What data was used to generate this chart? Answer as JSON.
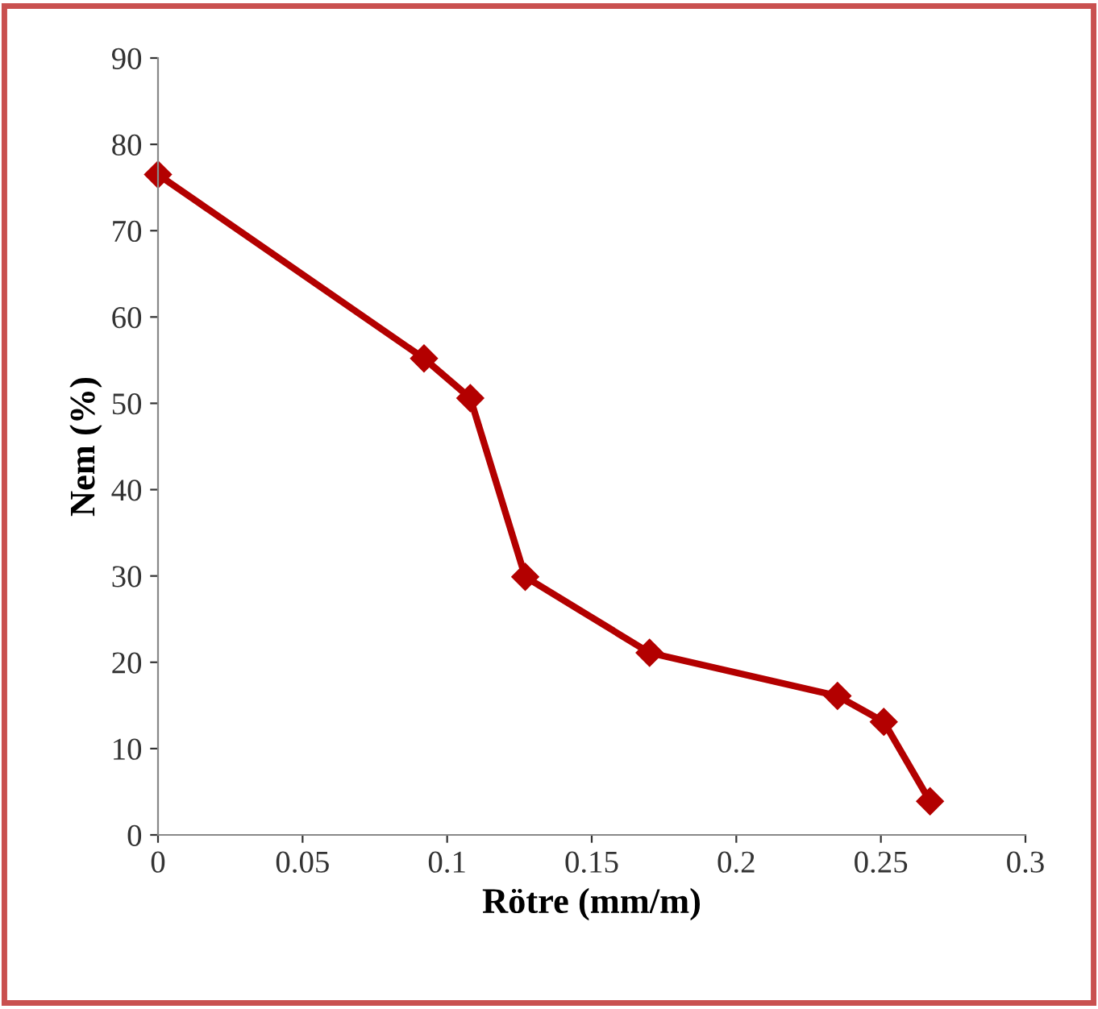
{
  "chart_data": {
    "type": "line",
    "xlabel": "Rötre (mm/m)",
    "ylabel": "Nem (%)",
    "series": [
      {
        "color": "#b30000",
        "x": [
          0,
          0.092,
          0.108,
          0.127,
          0.17,
          0.235,
          0.251,
          0.267
        ],
        "values": [
          76.5,
          55.2,
          50.6,
          29.9,
          21.1,
          16.1,
          13.1,
          3.9
        ]
      }
    ],
    "xlim": [
      0,
      0.3
    ],
    "ylim": [
      0,
      90
    ],
    "xticks": [
      0,
      0.05,
      0.1,
      0.15,
      0.2,
      0.25,
      0.3
    ],
    "yticks": [
      0,
      10,
      20,
      30,
      40,
      50,
      60,
      70,
      80,
      90
    ],
    "grid": false,
    "marker": "diamond",
    "line_style": "solid"
  }
}
